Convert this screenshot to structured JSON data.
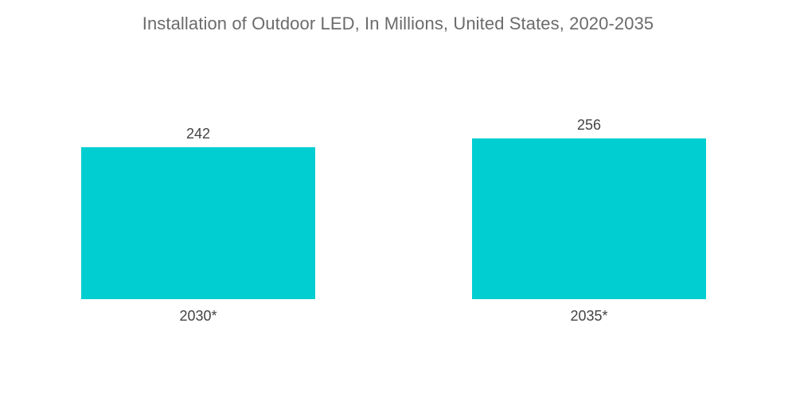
{
  "chart_data": {
    "type": "bar",
    "title": "Installation of Outdoor LED, In Millions, United States, 2020-2035",
    "categories": [
      "2030*",
      "2035*"
    ],
    "values": [
      242,
      256
    ],
    "xlabel": "",
    "ylabel": "",
    "ylim": [
      0,
      256
    ],
    "grid": false,
    "legend": "none",
    "bar_color": "#00CED1",
    "text_color": "#444444",
    "title_color": "#6B6B6B"
  }
}
